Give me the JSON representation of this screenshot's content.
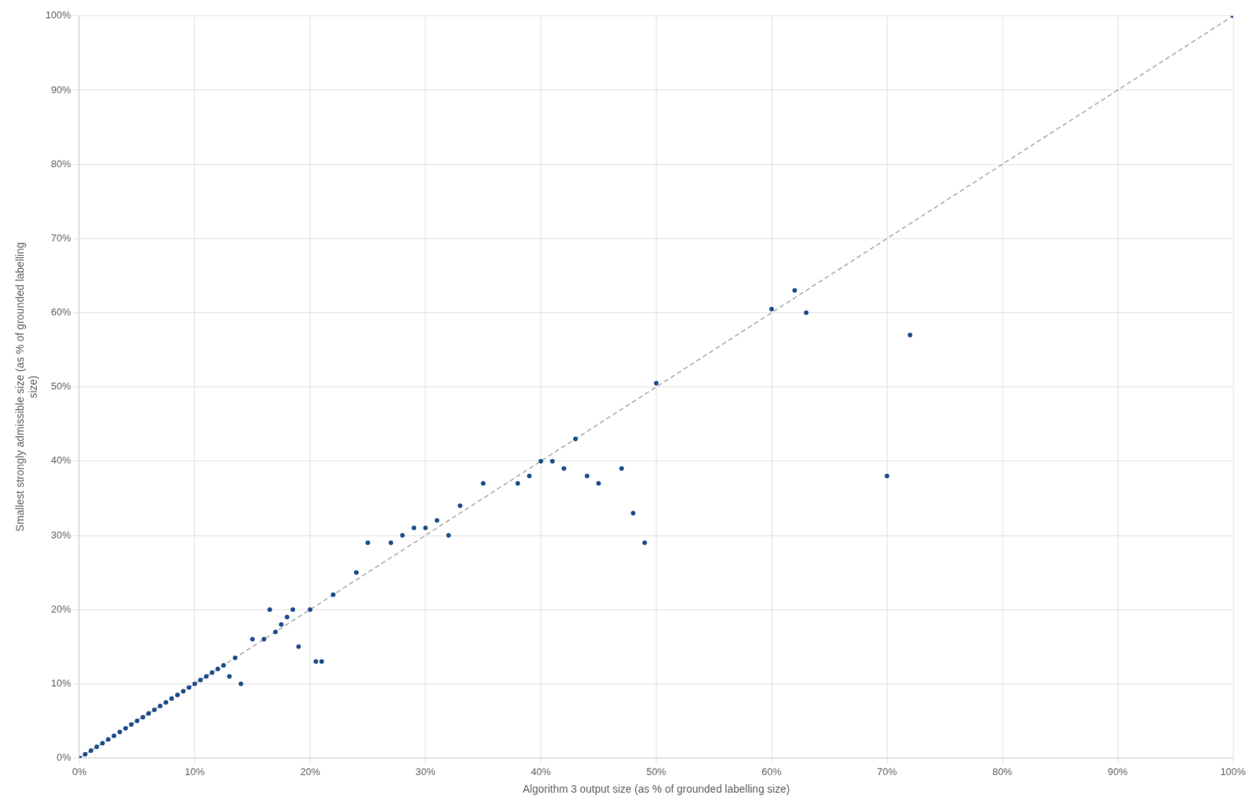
{
  "chart_data": {
    "type": "scatter",
    "xlabel": "Algorithm 3 output size (as % of grounded labelling size)",
    "ylabel": "Smallest strongly admissible size (as % of grounded labelling\nsize)",
    "series": [
      {
        "type": "line",
        "color": "#AAAAAA",
        "line_style": "dashed",
        "x": [
          0,
          100
        ],
        "values": [
          0,
          100
        ]
      },
      {
        "type": "scatter",
        "color": "#1F4E8C",
        "marker": "circle",
        "x": [
          0.0,
          0.5,
          1.0,
          1.5,
          2.0,
          2.5,
          3.0,
          3.5,
          4.0,
          4.5,
          5.0,
          5.5,
          6.0,
          6.5,
          7.0,
          7.5,
          8.0,
          8.5,
          9.0,
          9.5,
          10.0,
          10.5,
          11.0,
          11.5,
          12.0,
          12.5,
          13.0,
          13.5,
          14.0,
          15.0,
          16.0,
          16.5,
          17.0,
          17.5,
          18.0,
          18.5,
          19.0,
          20.0,
          20.5,
          21.0,
          22.0,
          24.0,
          25.0,
          27.0,
          28.0,
          29.0,
          30.0,
          31.0,
          32.0,
          33.0,
          35.0,
          38.0,
          39.0,
          40.0,
          41.0,
          42.0,
          43.0,
          44.0,
          45.0,
          47.0,
          48.0,
          49.0,
          50.0,
          60.0,
          62.0,
          63.0,
          70.0,
          72.0,
          100.0
        ],
        "values": [
          0.0,
          0.5,
          1.0,
          1.5,
          2.0,
          2.5,
          3.0,
          3.5,
          4.0,
          4.5,
          5.0,
          5.5,
          6.0,
          6.5,
          7.0,
          7.5,
          8.0,
          8.5,
          9.0,
          9.5,
          10.0,
          10.5,
          11.0,
          11.5,
          12.0,
          12.5,
          11.0,
          13.5,
          10.0,
          16.0,
          16.0,
          20.0,
          17.0,
          18.0,
          19.0,
          20.0,
          15.0,
          20.0,
          13.0,
          13.0,
          22.0,
          25.0,
          29.0,
          29.0,
          30.0,
          31.0,
          31.0,
          32.0,
          30.0,
          34.0,
          37.0,
          37.0,
          38.0,
          40.0,
          40.0,
          39.0,
          43.0,
          38.0,
          37.0,
          39.0,
          33.0,
          29.0,
          50.5,
          60.5,
          63.0,
          60.0,
          38.0,
          57.0,
          100.0
        ]
      }
    ],
    "xlim": [
      0,
      100
    ],
    "ylim": [
      0,
      100
    ],
    "xticks": [
      {
        "value": 0,
        "label": "0%"
      },
      {
        "value": 10,
        "label": "10%"
      },
      {
        "value": 20,
        "label": "20%"
      },
      {
        "value": 30,
        "label": "30%"
      },
      {
        "value": 40,
        "label": "40%"
      },
      {
        "value": 50,
        "label": "50%"
      },
      {
        "value": 60,
        "label": "60%"
      },
      {
        "value": 70,
        "label": "70%"
      },
      {
        "value": 80,
        "label": "80%"
      },
      {
        "value": 90,
        "label": "90%"
      },
      {
        "value": 100,
        "label": "100%"
      }
    ],
    "yticks": [
      {
        "value": 0,
        "label": "0%"
      },
      {
        "value": 10,
        "label": "10%"
      },
      {
        "value": 20,
        "label": "20%"
      },
      {
        "value": 30,
        "label": "30%"
      },
      {
        "value": 40,
        "label": "40%"
      },
      {
        "value": 50,
        "label": "50%"
      },
      {
        "value": 60,
        "label": "60%"
      },
      {
        "value": 70,
        "label": "70%"
      },
      {
        "value": 80,
        "label": "80%"
      },
      {
        "value": 90,
        "label": "90%"
      },
      {
        "value": 100,
        "label": "100%"
      }
    ],
    "grid": true
  }
}
